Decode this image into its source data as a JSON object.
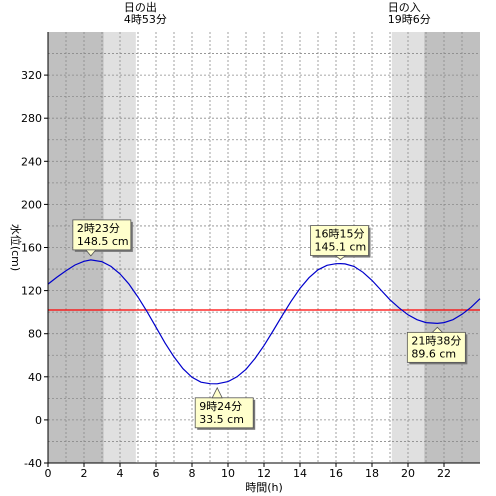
{
  "chart_data": {
    "type": "line",
    "xlabel": "時間(h)",
    "ylabel": "水位(cm)",
    "xlim": [
      0,
      24
    ],
    "ylim": [
      -40,
      360
    ],
    "x_ticks": [
      0,
      2,
      4,
      6,
      8,
      10,
      12,
      14,
      16,
      18,
      20,
      22
    ],
    "y_ticks": [
      -40,
      0,
      40,
      80,
      120,
      160,
      200,
      240,
      280,
      320
    ],
    "grid": true,
    "reference_line": {
      "y": 102,
      "color": "#ff0000"
    },
    "sunrise": {
      "label": "日の出",
      "time": "4時53分",
      "hour": 4.88
    },
    "sunset": {
      "label": "日の入",
      "time": "19時6分",
      "hour": 19.1
    },
    "shading": [
      {
        "from": 0,
        "to": 3.1,
        "color": "#c0c0c0"
      },
      {
        "from": 3.1,
        "to": 4.88,
        "color": "#e0e0e0"
      },
      {
        "from": 19.1,
        "to": 20.9,
        "color": "#e0e0e0"
      },
      {
        "from": 20.9,
        "to": 24,
        "color": "#c0c0c0"
      }
    ],
    "series": [
      {
        "color": "#0000cc",
        "x": [
          0,
          0.5,
          1,
          1.5,
          2,
          2.38,
          3,
          3.5,
          4,
          4.5,
          5,
          5.5,
          6,
          6.5,
          7,
          7.5,
          8,
          8.5,
          9,
          9.4,
          10,
          10.5,
          11,
          11.5,
          12,
          12.5,
          13,
          13.5,
          14,
          14.5,
          15,
          15.5,
          16,
          16.25,
          16.5,
          17,
          17.5,
          18,
          18.5,
          19,
          19.5,
          20,
          20.5,
          21,
          21.63,
          22,
          22.5,
          23,
          23.5,
          24
        ],
        "y": [
          126,
          132.5,
          138.5,
          143.8,
          147.2,
          148.5,
          146.8,
          142.5,
          135.5,
          126,
          114,
          100.5,
          86,
          71.5,
          58.5,
          47.5,
          39.5,
          35,
          33.6,
          33.5,
          35.5,
          40,
          47,
          57,
          69,
          82.5,
          96.5,
          110,
          122,
          132,
          139.3,
          143.5,
          145,
          145.1,
          144.8,
          142.5,
          137,
          129.5,
          120.5,
          111.5,
          104,
          97.5,
          93,
          90.3,
          89.6,
          90.3,
          93,
          98,
          104.5,
          112.5
        ]
      }
    ],
    "annotations": [
      {
        "time": "2時23分",
        "value": "148.5 cm",
        "x": 2.38,
        "y": 148.5
      },
      {
        "time": "9時24分",
        "value": "33.5 cm",
        "x": 9.4,
        "y": 33.5
      },
      {
        "time": "16時15分",
        "value": "145.1 cm",
        "x": 16.25,
        "y": 145.1
      },
      {
        "time": "21時38分",
        "value": "89.6 cm",
        "x": 21.63,
        "y": 89.6
      }
    ]
  }
}
